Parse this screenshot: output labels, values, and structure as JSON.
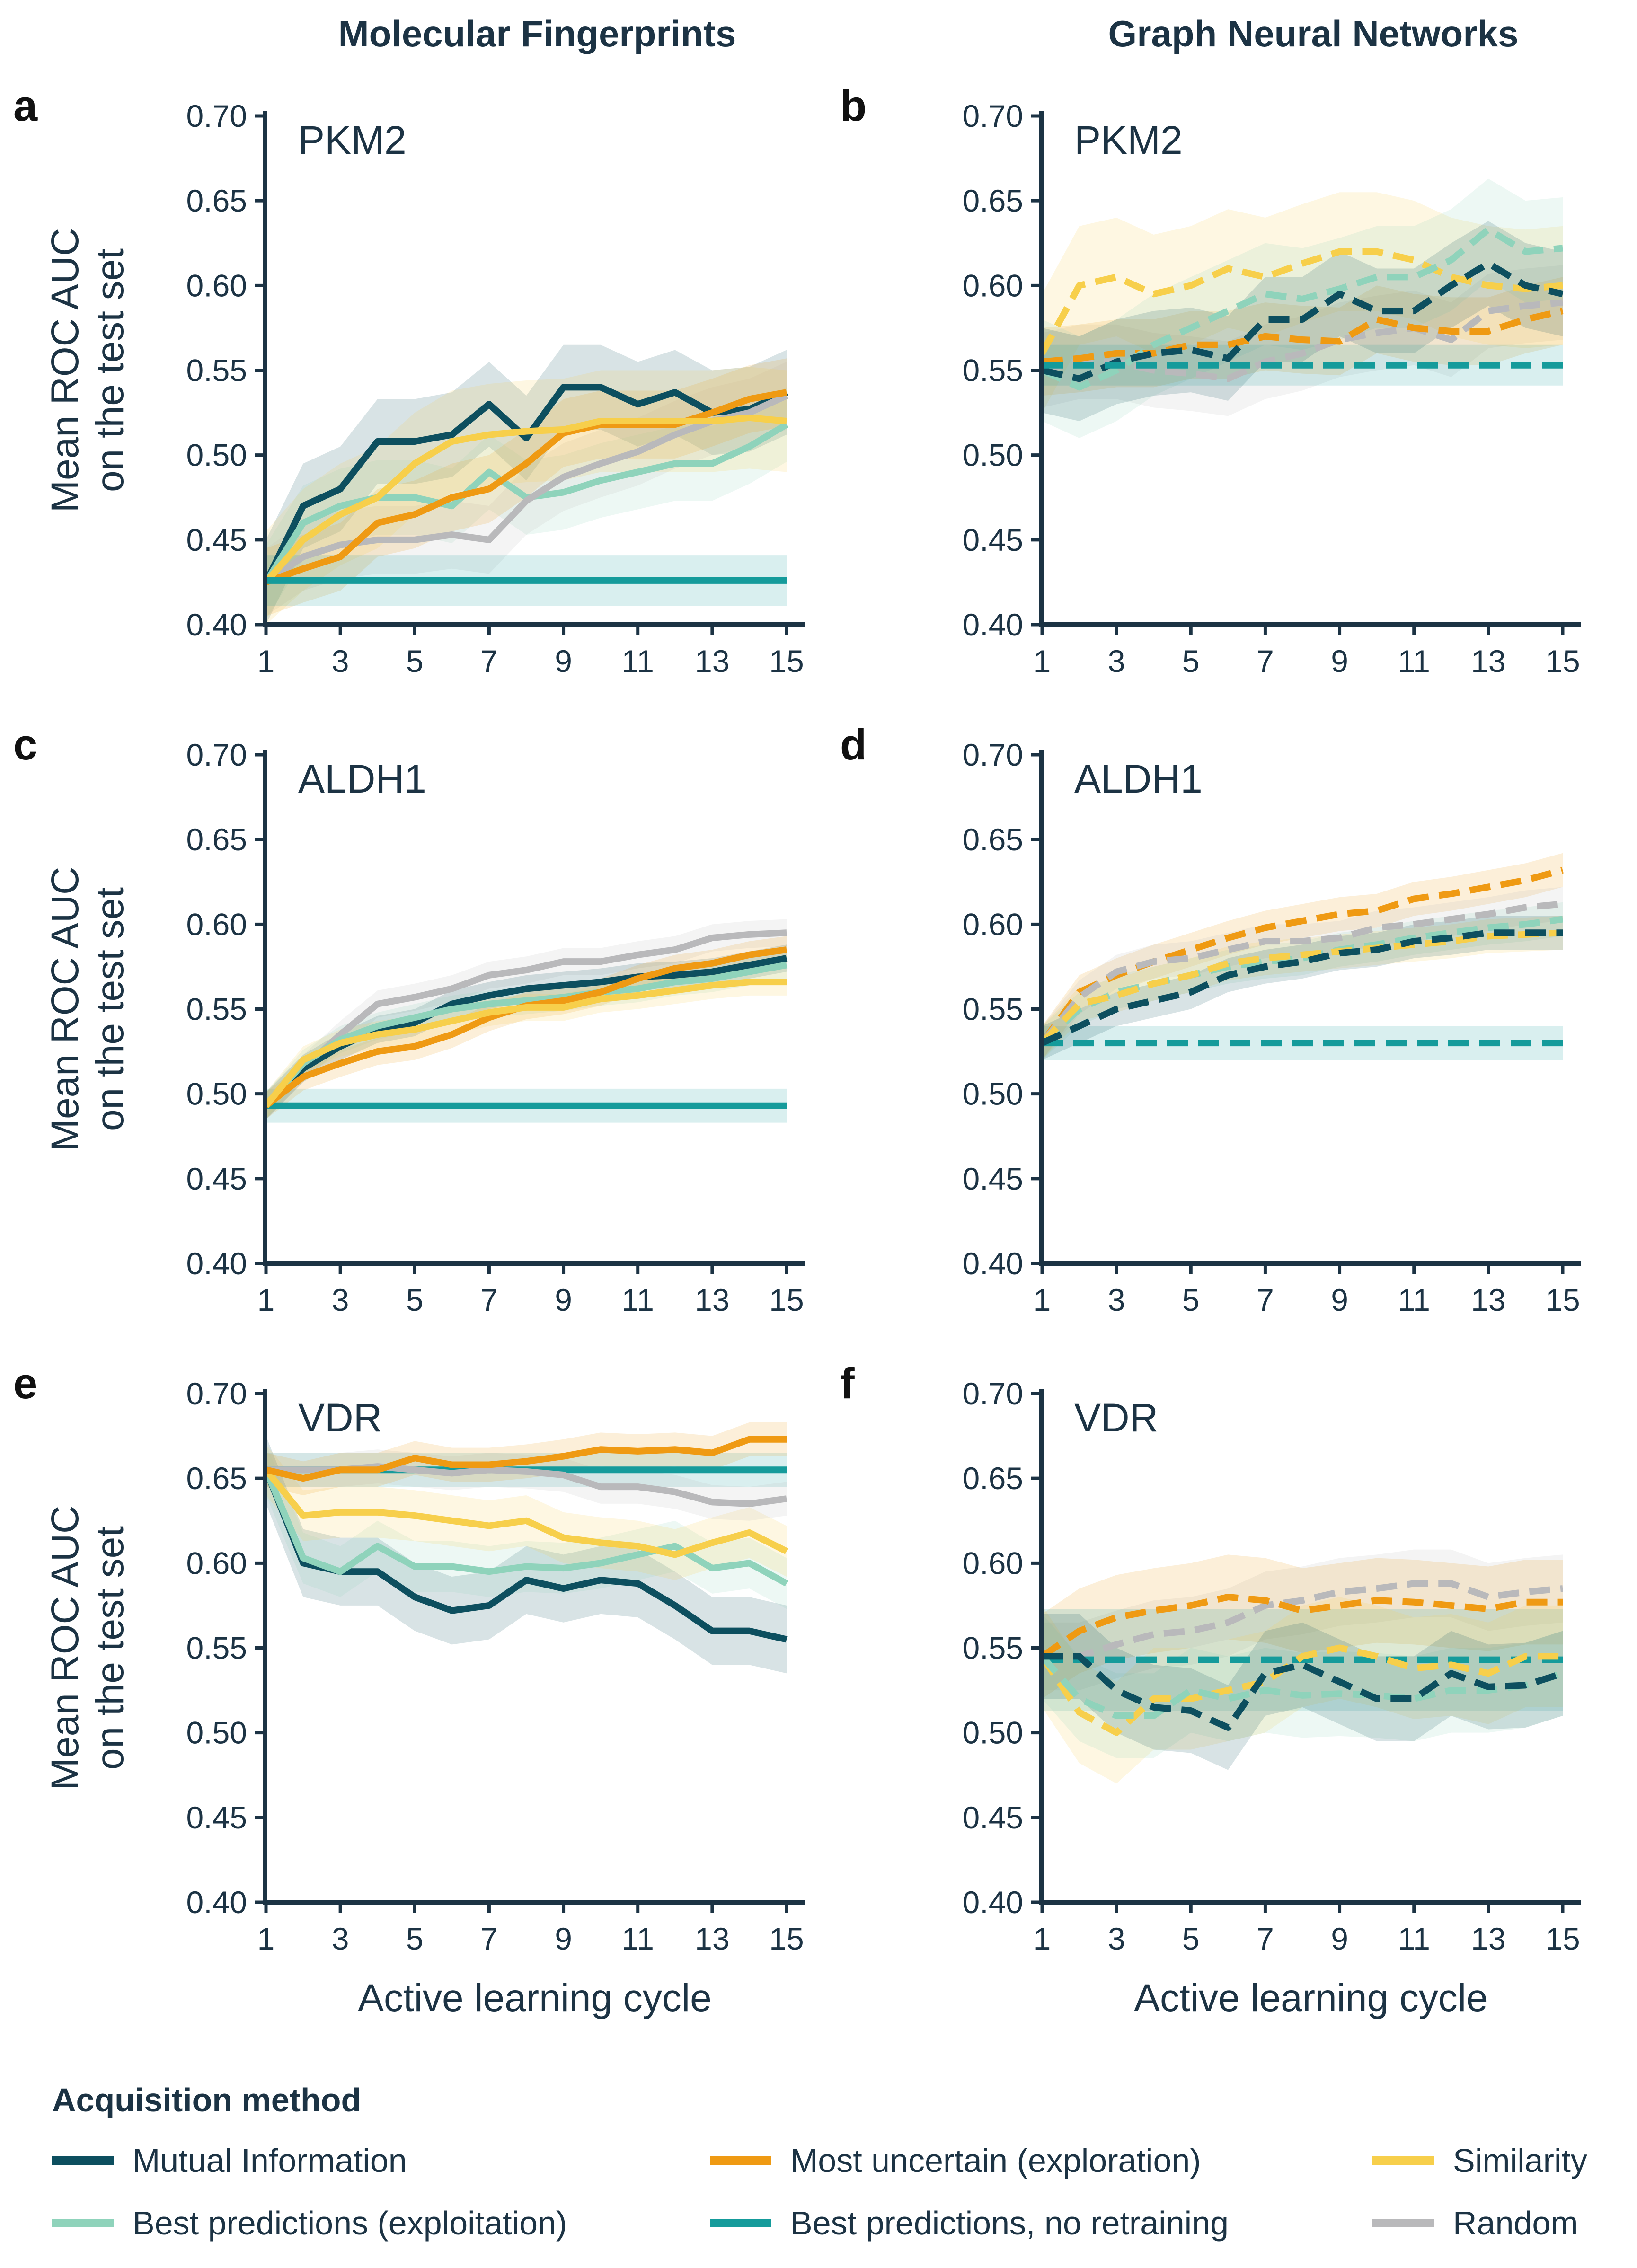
{
  "columns": {
    "left_title": "Molecular Fingerprints",
    "right_title": "Graph Neural Networks"
  },
  "axes": {
    "ylabel_line1": "Mean ROC AUC",
    "ylabel_line2": "on the test set",
    "xlabel": "Active learning cycle",
    "yticks": [
      "0.70",
      "0.65",
      "0.60",
      "0.55",
      "0.50",
      "0.45",
      "0.40"
    ],
    "xticks": [
      "1",
      "3",
      "5",
      "7",
      "9",
      "11",
      "13",
      "15"
    ]
  },
  "legend": {
    "title": "Acquisition method",
    "items": [
      {
        "label": "Mutual Information",
        "color": "#0d4f5f"
      },
      {
        "label": "Most uncertain (exploration)",
        "color": "#ef9a13"
      },
      {
        "label": "Similarity",
        "color": "#f7cf4b"
      },
      {
        "label": "Best predictions (exploitation)",
        "color": "#8fd3bb"
      },
      {
        "label": "Best predictions, no retraining",
        "color": "#159b9b"
      },
      {
        "label": "Random",
        "color": "#b9b9bb"
      }
    ]
  },
  "chart_data": [
    {
      "panel": "a",
      "title": "PKM2",
      "type": "line",
      "linestyle": "solid",
      "x": [
        1,
        2,
        3,
        4,
        5,
        6,
        7,
        8,
        9,
        10,
        11,
        12,
        13,
        14,
        15
      ],
      "ylim": [
        0.4,
        0.7
      ],
      "xlim": [
        1,
        15
      ],
      "series": [
        {
          "name": "Mutual Information",
          "color": "#0d4f5f",
          "band": 0.025,
          "values": [
            0.425,
            0.47,
            0.48,
            0.508,
            0.508,
            0.512,
            0.53,
            0.51,
            0.54,
            0.54,
            0.53,
            0.537,
            0.525,
            0.527,
            0.537
          ]
        },
        {
          "name": "Best predictions (exploitation)",
          "color": "#8fd3bb",
          "band": 0.022,
          "values": [
            0.425,
            0.46,
            0.47,
            0.475,
            0.475,
            0.47,
            0.49,
            0.475,
            0.478,
            0.485,
            0.49,
            0.495,
            0.495,
            0.505,
            0.518
          ]
        },
        {
          "name": "Random",
          "color": "#b9b9bb",
          "band": 0.02,
          "values": [
            0.425,
            0.44,
            0.447,
            0.45,
            0.45,
            0.453,
            0.45,
            0.473,
            0.487,
            0.495,
            0.502,
            0.512,
            0.52,
            0.525,
            0.535
          ]
        },
        {
          "name": "Most uncertain (exploration)",
          "color": "#ef9a13",
          "band": 0.02,
          "values": [
            0.425,
            0.433,
            0.44,
            0.46,
            0.465,
            0.475,
            0.48,
            0.495,
            0.513,
            0.518,
            0.518,
            0.518,
            0.525,
            0.533,
            0.537
          ]
        },
        {
          "name": "Similarity",
          "color": "#f7cf4b",
          "band": 0.03,
          "values": [
            0.425,
            0.45,
            0.465,
            0.475,
            0.495,
            0.508,
            0.512,
            0.514,
            0.515,
            0.52,
            0.52,
            0.52,
            0.52,
            0.522,
            0.52
          ]
        },
        {
          "name": "Best predictions, no retraining",
          "color": "#159b9b",
          "band": 0.015,
          "values": [
            0.426,
            0.426,
            0.426,
            0.426,
            0.426,
            0.426,
            0.426,
            0.426,
            0.426,
            0.426,
            0.426,
            0.426,
            0.426,
            0.426,
            0.426
          ]
        }
      ]
    },
    {
      "panel": "b",
      "title": "PKM2",
      "type": "line",
      "linestyle": "dashed",
      "x": [
        1,
        2,
        3,
        4,
        5,
        6,
        7,
        8,
        9,
        10,
        11,
        12,
        13,
        14,
        15
      ],
      "ylim": [
        0.4,
        0.7
      ],
      "xlim": [
        1,
        15
      ],
      "series": [
        {
          "name": "Random",
          "color": "#b9b9bb",
          "band": 0.022,
          "values": [
            0.55,
            0.555,
            0.555,
            0.55,
            0.548,
            0.545,
            0.555,
            0.56,
            0.568,
            0.572,
            0.575,
            0.568,
            0.585,
            0.588,
            0.59
          ]
        },
        {
          "name": "Most uncertain (exploration)",
          "color": "#ef9a13",
          "band": 0.02,
          "values": [
            0.555,
            0.557,
            0.56,
            0.56,
            0.565,
            0.565,
            0.57,
            0.568,
            0.567,
            0.58,
            0.575,
            0.573,
            0.573,
            0.58,
            0.585
          ]
        },
        {
          "name": "Similarity",
          "color": "#f7cf4b",
          "band": 0.035,
          "values": [
            0.56,
            0.6,
            0.605,
            0.595,
            0.6,
            0.61,
            0.605,
            0.613,
            0.62,
            0.62,
            0.615,
            0.605,
            0.6,
            0.598,
            0.6
          ]
        },
        {
          "name": "Best predictions (exploitation)",
          "color": "#8fd3bb",
          "band": 0.03,
          "values": [
            0.55,
            0.54,
            0.55,
            0.565,
            0.575,
            0.585,
            0.595,
            0.592,
            0.598,
            0.605,
            0.605,
            0.615,
            0.633,
            0.62,
            0.622
          ]
        },
        {
          "name": "Mutual Information",
          "color": "#0d4f5f",
          "band": 0.025,
          "values": [
            0.55,
            0.545,
            0.555,
            0.56,
            0.562,
            0.557,
            0.58,
            0.58,
            0.595,
            0.585,
            0.585,
            0.6,
            0.613,
            0.6,
            0.595
          ]
        },
        {
          "name": "Best predictions, no retraining",
          "color": "#159b9b",
          "band": 0.012,
          "values": [
            0.553,
            0.553,
            0.553,
            0.553,
            0.553,
            0.553,
            0.553,
            0.553,
            0.553,
            0.553,
            0.553,
            0.553,
            0.553,
            0.553,
            0.553
          ]
        }
      ]
    },
    {
      "panel": "c",
      "title": "ALDH1",
      "type": "line",
      "linestyle": "solid",
      "x": [
        1,
        2,
        3,
        4,
        5,
        6,
        7,
        8,
        9,
        10,
        11,
        12,
        13,
        14,
        15
      ],
      "ylim": [
        0.4,
        0.7
      ],
      "xlim": [
        1,
        15
      ],
      "series": [
        {
          "name": "Best predictions, no retraining",
          "color": "#159b9b",
          "band": 0.01,
          "values": [
            0.493,
            0.493,
            0.493,
            0.493,
            0.493,
            0.493,
            0.493,
            0.493,
            0.493,
            0.493,
            0.493,
            0.493,
            0.493,
            0.493,
            0.493
          ]
        },
        {
          "name": "Random",
          "color": "#b9b9bb",
          "band": 0.008,
          "values": [
            0.493,
            0.515,
            0.535,
            0.553,
            0.557,
            0.562,
            0.57,
            0.573,
            0.578,
            0.578,
            0.582,
            0.585,
            0.592,
            0.594,
            0.595
          ]
        },
        {
          "name": "Mutual Information",
          "color": "#0d4f5f",
          "band": 0.008,
          "values": [
            0.493,
            0.515,
            0.528,
            0.538,
            0.542,
            0.553,
            0.558,
            0.562,
            0.564,
            0.566,
            0.569,
            0.57,
            0.572,
            0.576,
            0.58
          ]
        },
        {
          "name": "Best predictions (exploitation)",
          "color": "#8fd3bb",
          "band": 0.008,
          "values": [
            0.493,
            0.518,
            0.532,
            0.54,
            0.545,
            0.55,
            0.553,
            0.555,
            0.557,
            0.56,
            0.562,
            0.566,
            0.568,
            0.572,
            0.576
          ]
        },
        {
          "name": "Most uncertain (exploration)",
          "color": "#ef9a13",
          "band": 0.008,
          "values": [
            0.493,
            0.51,
            0.518,
            0.525,
            0.528,
            0.535,
            0.545,
            0.552,
            0.555,
            0.56,
            0.568,
            0.574,
            0.577,
            0.582,
            0.585
          ]
        },
        {
          "name": "Similarity",
          "color": "#f7cf4b",
          "band": 0.008,
          "values": [
            0.493,
            0.52,
            0.53,
            0.535,
            0.538,
            0.543,
            0.548,
            0.551,
            0.551,
            0.556,
            0.558,
            0.561,
            0.564,
            0.566,
            0.566
          ]
        }
      ]
    },
    {
      "panel": "d",
      "title": "ALDH1",
      "type": "line",
      "linestyle": "dashed",
      "x": [
        1,
        2,
        3,
        4,
        5,
        6,
        7,
        8,
        9,
        10,
        11,
        12,
        13,
        14,
        15
      ],
      "ylim": [
        0.4,
        0.7
      ],
      "xlim": [
        1,
        15
      ],
      "series": [
        {
          "name": "Best predictions, no retraining",
          "color": "#159b9b",
          "band": 0.01,
          "values": [
            0.53,
            0.53,
            0.53,
            0.53,
            0.53,
            0.53,
            0.53,
            0.53,
            0.53,
            0.53,
            0.53,
            0.53,
            0.53,
            0.53,
            0.53
          ]
        },
        {
          "name": "Most uncertain (exploration)",
          "color": "#ef9a13",
          "band": 0.01,
          "values": [
            0.53,
            0.56,
            0.57,
            0.578,
            0.585,
            0.592,
            0.598,
            0.602,
            0.606,
            0.608,
            0.615,
            0.618,
            0.622,
            0.626,
            0.632
          ]
        },
        {
          "name": "Random",
          "color": "#b9b9bb",
          "band": 0.01,
          "values": [
            0.53,
            0.557,
            0.572,
            0.578,
            0.58,
            0.585,
            0.59,
            0.59,
            0.592,
            0.598,
            0.6,
            0.603,
            0.606,
            0.61,
            0.612
          ]
        },
        {
          "name": "Best predictions (exploitation)",
          "color": "#8fd3bb",
          "band": 0.01,
          "values": [
            0.53,
            0.55,
            0.56,
            0.565,
            0.57,
            0.575,
            0.578,
            0.58,
            0.585,
            0.588,
            0.592,
            0.595,
            0.598,
            0.6,
            0.603
          ]
        },
        {
          "name": "Similarity",
          "color": "#f7cf4b",
          "band": 0.01,
          "values": [
            0.53,
            0.553,
            0.558,
            0.565,
            0.57,
            0.577,
            0.58,
            0.582,
            0.584,
            0.586,
            0.588,
            0.59,
            0.593,
            0.594,
            0.595
          ]
        },
        {
          "name": "Mutual Information",
          "color": "#0d4f5f",
          "band": 0.01,
          "values": [
            0.53,
            0.54,
            0.55,
            0.555,
            0.56,
            0.57,
            0.575,
            0.578,
            0.583,
            0.585,
            0.59,
            0.592,
            0.595,
            0.595,
            0.595
          ]
        }
      ]
    },
    {
      "panel": "e",
      "title": "VDR",
      "type": "line",
      "linestyle": "solid",
      "x": [
        1,
        2,
        3,
        4,
        5,
        6,
        7,
        8,
        9,
        10,
        11,
        12,
        13,
        14,
        15
      ],
      "ylim": [
        0.4,
        0.7
      ],
      "xlim": [
        1,
        15
      ],
      "series": [
        {
          "name": "Best predictions, no retraining",
          "color": "#159b9b",
          "band": 0.01,
          "values": [
            0.655,
            0.655,
            0.655,
            0.655,
            0.655,
            0.655,
            0.655,
            0.655,
            0.655,
            0.655,
            0.655,
            0.655,
            0.655,
            0.655,
            0.655
          ]
        },
        {
          "name": "Mutual Information",
          "color": "#0d4f5f",
          "band": 0.02,
          "values": [
            0.655,
            0.6,
            0.595,
            0.595,
            0.58,
            0.572,
            0.575,
            0.59,
            0.585,
            0.59,
            0.588,
            0.575,
            0.56,
            0.56,
            0.555
          ]
        },
        {
          "name": "Best predictions (exploitation)",
          "color": "#8fd3bb",
          "band": 0.015,
          "values": [
            0.655,
            0.603,
            0.595,
            0.61,
            0.598,
            0.598,
            0.595,
            0.598,
            0.597,
            0.6,
            0.605,
            0.61,
            0.597,
            0.6,
            0.588
          ]
        },
        {
          "name": "Similarity",
          "color": "#f7cf4b",
          "band": 0.015,
          "values": [
            0.655,
            0.628,
            0.63,
            0.63,
            0.628,
            0.625,
            0.622,
            0.625,
            0.615,
            0.612,
            0.61,
            0.605,
            0.612,
            0.618,
            0.607
          ]
        },
        {
          "name": "Random",
          "color": "#b9b9bb",
          "band": 0.01,
          "values": [
            0.655,
            0.655,
            0.655,
            0.657,
            0.655,
            0.653,
            0.655,
            0.654,
            0.652,
            0.645,
            0.645,
            0.642,
            0.636,
            0.635,
            0.638
          ]
        },
        {
          "name": "Most uncertain (exploration)",
          "color": "#ef9a13",
          "band": 0.01,
          "values": [
            0.655,
            0.65,
            0.655,
            0.655,
            0.662,
            0.658,
            0.658,
            0.66,
            0.663,
            0.667,
            0.666,
            0.667,
            0.665,
            0.673,
            0.673
          ]
        }
      ]
    },
    {
      "panel": "f",
      "title": "VDR",
      "type": "line",
      "linestyle": "dashed",
      "x": [
        1,
        2,
        3,
        4,
        5,
        6,
        7,
        8,
        9,
        10,
        11,
        12,
        13,
        14,
        15
      ],
      "ylim": [
        0.4,
        0.7
      ],
      "xlim": [
        1,
        15
      ],
      "series": [
        {
          "name": "Random",
          "color": "#b9b9bb",
          "band": 0.02,
          "values": [
            0.545,
            0.545,
            0.552,
            0.558,
            0.56,
            0.565,
            0.575,
            0.578,
            0.583,
            0.585,
            0.588,
            0.588,
            0.58,
            0.583,
            0.585
          ]
        },
        {
          "name": "Most uncertain (exploration)",
          "color": "#ef9a13",
          "band": 0.025,
          "values": [
            0.545,
            0.56,
            0.568,
            0.572,
            0.575,
            0.58,
            0.578,
            0.572,
            0.575,
            0.578,
            0.577,
            0.575,
            0.573,
            0.577,
            0.577
          ]
        },
        {
          "name": "Best predictions, no retraining",
          "color": "#159b9b",
          "band": 0.03,
          "values": [
            0.543,
            0.543,
            0.543,
            0.543,
            0.543,
            0.543,
            0.543,
            0.543,
            0.543,
            0.543,
            0.543,
            0.543,
            0.543,
            0.543,
            0.543
          ]
        },
        {
          "name": "Similarity",
          "color": "#f7cf4b",
          "band": 0.03,
          "values": [
            0.545,
            0.512,
            0.5,
            0.52,
            0.52,
            0.525,
            0.53,
            0.545,
            0.55,
            0.545,
            0.538,
            0.54,
            0.535,
            0.545,
            0.545
          ]
        },
        {
          "name": "Best predictions (exploitation)",
          "color": "#8fd3bb",
          "band": 0.025,
          "values": [
            0.545,
            0.52,
            0.51,
            0.51,
            0.525,
            0.52,
            0.525,
            0.522,
            0.523,
            0.522,
            0.52,
            0.525,
            0.525,
            0.528,
            0.535
          ]
        },
        {
          "name": "Mutual Information",
          "color": "#0d4f5f",
          "band": 0.025,
          "values": [
            0.545,
            0.545,
            0.525,
            0.515,
            0.513,
            0.503,
            0.535,
            0.54,
            0.53,
            0.52,
            0.52,
            0.535,
            0.527,
            0.528,
            0.535
          ]
        }
      ]
    }
  ]
}
